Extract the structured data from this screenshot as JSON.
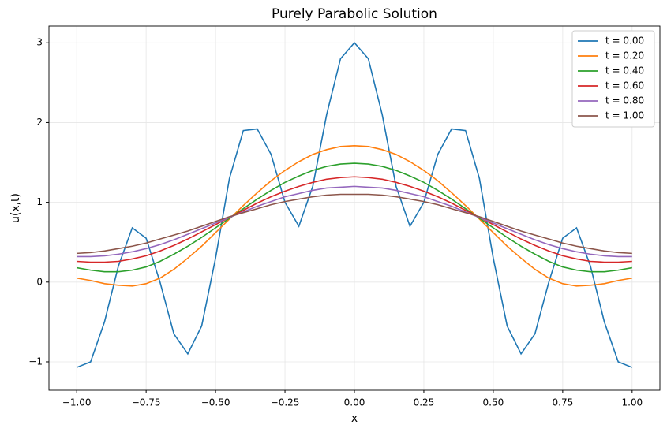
{
  "chart_data": {
    "type": "line",
    "title": "Purely Parabolic Solution",
    "x_label": "x",
    "y_label": "u(x,t)",
    "x": [
      -1,
      -0.95,
      -0.9,
      -0.85,
      -0.8,
      -0.75,
      -0.7,
      -0.65,
      -0.6,
      -0.55,
      -0.5,
      -0.45,
      -0.4,
      -0.35,
      -0.3,
      -0.25,
      -0.2,
      -0.15,
      -0.1,
      -0.05,
      0,
      0.05,
      0.1,
      0.15,
      0.2,
      0.25,
      0.3,
      0.35,
      0.4,
      0.45,
      0.5,
      0.55,
      0.6,
      0.65,
      0.7,
      0.75,
      0.8,
      0.85,
      0.9,
      0.95,
      1
    ],
    "series": [
      {
        "name": "t = 0.00",
        "color": "#1f77b4",
        "values": [
          -1.07,
          -1.0,
          -0.5,
          0.2,
          0.68,
          0.55,
          0.0,
          -0.65,
          -0.9,
          -0.55,
          0.3,
          1.3,
          1.9,
          1.92,
          1.6,
          1.0,
          0.7,
          1.2,
          2.1,
          2.8,
          3.0,
          2.8,
          2.1,
          1.2,
          0.7,
          1.0,
          1.6,
          1.92,
          1.9,
          1.3,
          0.3,
          -0.55,
          -0.9,
          -0.65,
          0.0,
          0.55,
          0.68,
          0.2,
          -0.5,
          -1.0,
          -1.07
        ]
      },
      {
        "name": "t = 0.20",
        "color": "#ff7f0e",
        "values": [
          0.05,
          0.02,
          -0.02,
          -0.04,
          -0.05,
          -0.02,
          0.05,
          0.16,
          0.3,
          0.45,
          0.62,
          0.79,
          0.96,
          1.12,
          1.27,
          1.4,
          1.51,
          1.6,
          1.66,
          1.7,
          1.71,
          1.7,
          1.66,
          1.6,
          1.51,
          1.4,
          1.27,
          1.12,
          0.96,
          0.79,
          0.62,
          0.45,
          0.3,
          0.16,
          0.05,
          -0.02,
          -0.05,
          -0.04,
          -0.02,
          0.02,
          0.05
        ]
      },
      {
        "name": "t = 0.40",
        "color": "#2ca02c",
        "values": [
          0.18,
          0.15,
          0.13,
          0.13,
          0.15,
          0.19,
          0.26,
          0.35,
          0.45,
          0.56,
          0.68,
          0.8,
          0.92,
          1.04,
          1.15,
          1.25,
          1.33,
          1.4,
          1.45,
          1.48,
          1.49,
          1.48,
          1.45,
          1.4,
          1.33,
          1.25,
          1.15,
          1.04,
          0.92,
          0.8,
          0.68,
          0.56,
          0.45,
          0.35,
          0.26,
          0.19,
          0.15,
          0.13,
          0.13,
          0.15,
          0.18
        ]
      },
      {
        "name": "t = 0.60",
        "color": "#d62728",
        "values": [
          0.26,
          0.25,
          0.25,
          0.26,
          0.29,
          0.33,
          0.39,
          0.46,
          0.54,
          0.63,
          0.72,
          0.81,
          0.9,
          0.99,
          1.07,
          1.14,
          1.2,
          1.25,
          1.29,
          1.31,
          1.32,
          1.31,
          1.29,
          1.25,
          1.2,
          1.14,
          1.07,
          0.99,
          0.9,
          0.81,
          0.72,
          0.63,
          0.54,
          0.46,
          0.39,
          0.33,
          0.29,
          0.26,
          0.25,
          0.25,
          0.26
        ]
      },
      {
        "name": "t = 0.80",
        "color": "#9467bd",
        "values": [
          0.32,
          0.32,
          0.33,
          0.35,
          0.38,
          0.42,
          0.47,
          0.53,
          0.6,
          0.67,
          0.74,
          0.81,
          0.88,
          0.95,
          1.01,
          1.07,
          1.11,
          1.15,
          1.18,
          1.19,
          1.2,
          1.19,
          1.18,
          1.15,
          1.11,
          1.07,
          1.01,
          0.95,
          0.88,
          0.81,
          0.74,
          0.67,
          0.6,
          0.53,
          0.47,
          0.42,
          0.38,
          0.35,
          0.33,
          0.32,
          0.32
        ]
      },
      {
        "name": "t = 1.00",
        "color": "#8c564b",
        "values": [
          0.36,
          0.37,
          0.39,
          0.42,
          0.45,
          0.49,
          0.54,
          0.59,
          0.64,
          0.7,
          0.76,
          0.82,
          0.87,
          0.92,
          0.97,
          1.01,
          1.04,
          1.07,
          1.09,
          1.1,
          1.1,
          1.1,
          1.09,
          1.07,
          1.04,
          1.01,
          0.97,
          0.92,
          0.87,
          0.82,
          0.76,
          0.7,
          0.64,
          0.59,
          0.54,
          0.49,
          0.45,
          0.42,
          0.39,
          0.37,
          0.36
        ]
      }
    ],
    "xlim": [
      -1.1,
      1.1
    ],
    "ylim": [
      -1.356,
      3.21
    ],
    "xticks": [
      {
        "value": -1,
        "label": "−1.00"
      },
      {
        "value": -0.75,
        "label": "−0.75"
      },
      {
        "value": -0.5,
        "label": "−0.50"
      },
      {
        "value": -0.25,
        "label": "−0.25"
      },
      {
        "value": 0,
        "label": "0.00"
      },
      {
        "value": 0.25,
        "label": "0.25"
      },
      {
        "value": 0.5,
        "label": "0.50"
      },
      {
        "value": 0.75,
        "label": "0.75"
      },
      {
        "value": 1,
        "label": "1.00"
      }
    ],
    "yticks": [
      {
        "value": -1,
        "label": "−1"
      },
      0,
      1,
      2,
      3
    ],
    "grid": true,
    "legend": "upper right"
  }
}
